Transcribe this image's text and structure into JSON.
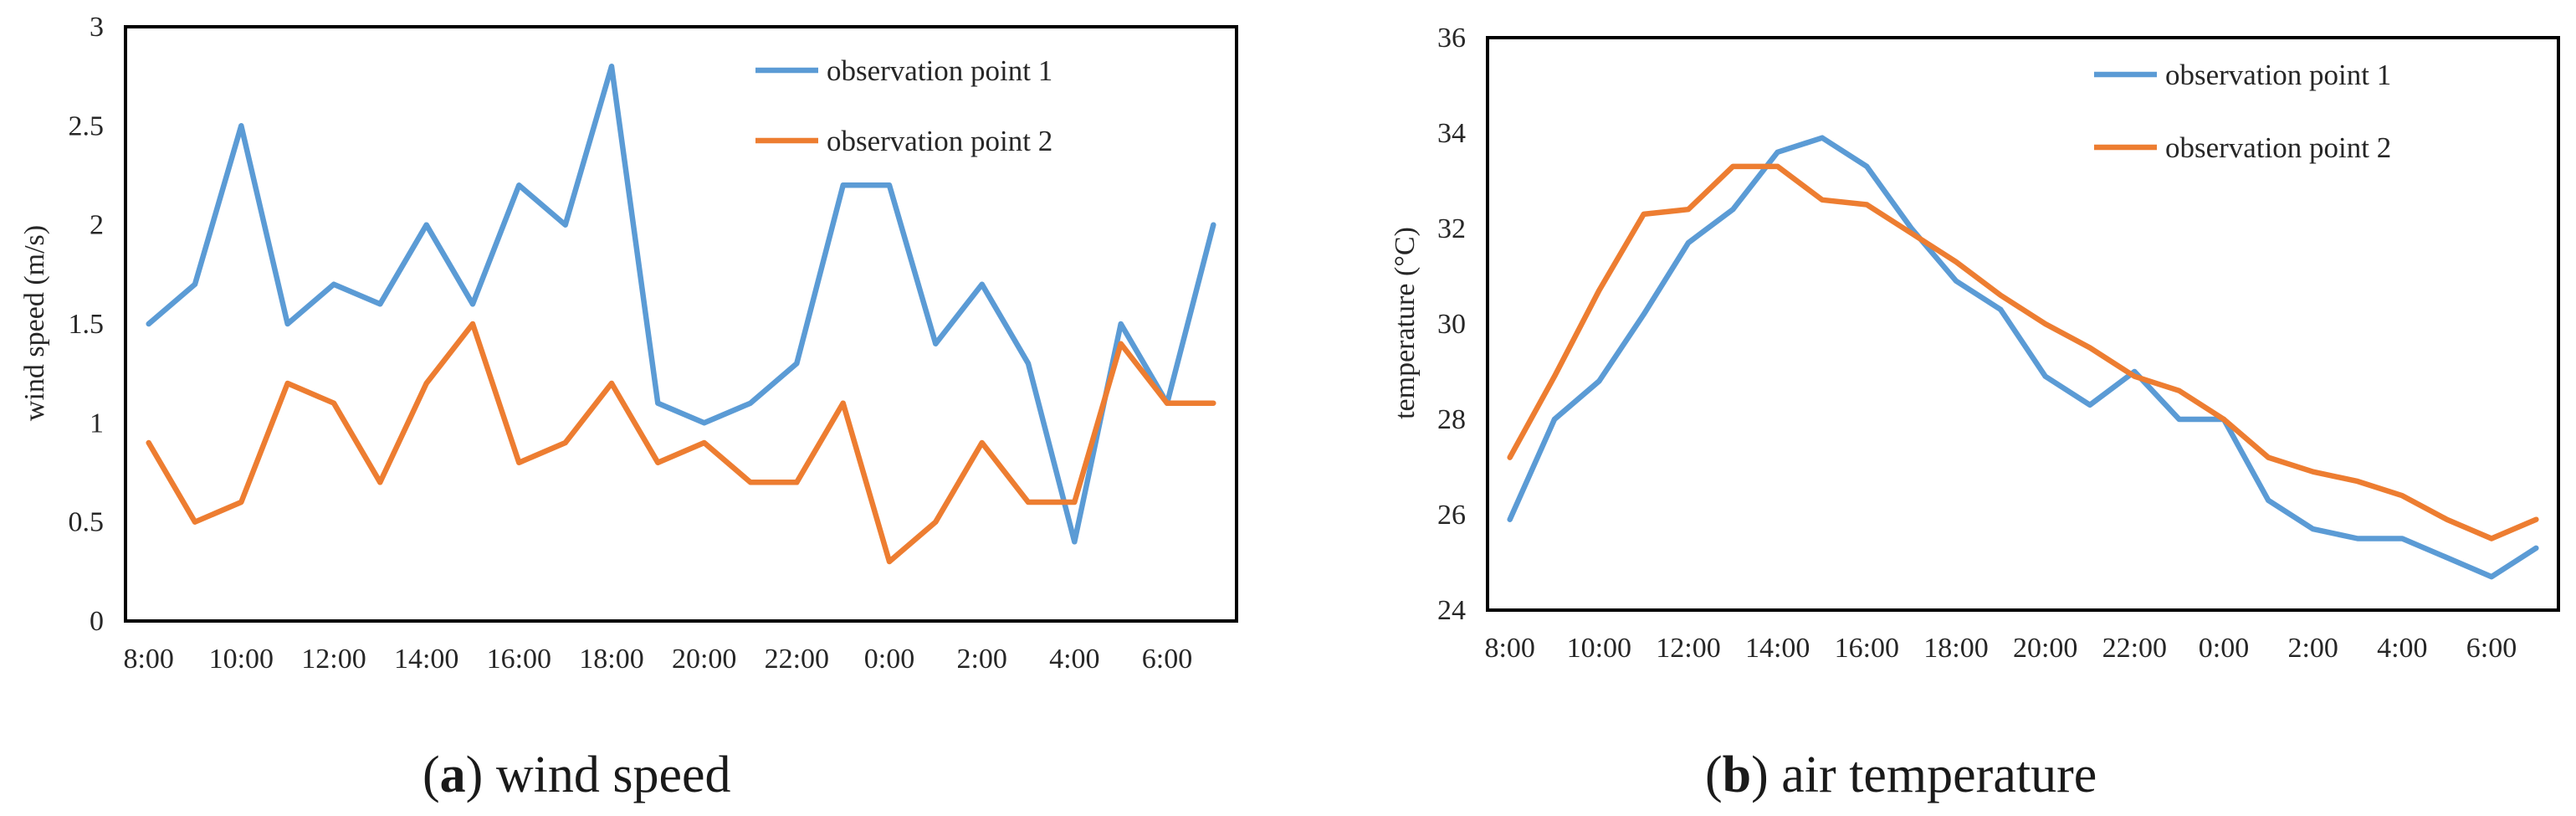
{
  "figure": {
    "captions": [
      {
        "letter": "a",
        "text": "wind speed"
      },
      {
        "letter": "b",
        "text": "air temperature"
      }
    ]
  },
  "chart_data": [
    {
      "type": "line",
      "title": "wind speed",
      "xlabel": "",
      "ylabel": "wind speed (m/s)",
      "ylim": [
        0,
        3
      ],
      "yticks": [
        "0",
        "0.5",
        "1",
        "1.5",
        "2",
        "2.5",
        "3"
      ],
      "xtick_labels": [
        "8:00",
        "10:00",
        "12:00",
        "14:00",
        "16:00",
        "18:00",
        "20:00",
        "22:00",
        "0:00",
        "2:00",
        "4:00",
        "6:00"
      ],
      "x": [
        "8:00",
        "9:00",
        "10:00",
        "11:00",
        "12:00",
        "13:00",
        "14:00",
        "15:00",
        "16:00",
        "17:00",
        "18:00",
        "19:00",
        "20:00",
        "21:00",
        "22:00",
        "23:00",
        "0:00",
        "1:00",
        "2:00",
        "3:00",
        "4:00",
        "5:00",
        "6:00",
        "7:00"
      ],
      "legend_position": "top-right",
      "series": [
        {
          "name": "observation point 1",
          "color": "#5b9bd5",
          "values": [
            1.5,
            1.7,
            2.5,
            1.5,
            1.7,
            1.6,
            2.0,
            1.6,
            2.2,
            2.0,
            2.8,
            1.1,
            1.0,
            1.1,
            1.3,
            2.2,
            2.2,
            1.4,
            1.7,
            1.3,
            0.4,
            1.5,
            1.1,
            2.0
          ]
        },
        {
          "name": "observation point 2",
          "color": "#ed7d31",
          "values": [
            0.9,
            0.5,
            0.6,
            1.2,
            1.1,
            0.7,
            1.2,
            1.5,
            0.8,
            0.9,
            1.2,
            0.8,
            0.9,
            0.7,
            0.7,
            1.1,
            0.3,
            0.5,
            0.9,
            0.6,
            0.6,
            1.4,
            1.1,
            1.1
          ]
        }
      ]
    },
    {
      "type": "line",
      "title": "air temperature",
      "xlabel": "",
      "ylabel": "temperature (°C)",
      "ylim": [
        24,
        36
      ],
      "yticks": [
        "24",
        "26",
        "28",
        "30",
        "32",
        "34",
        "36"
      ],
      "xtick_labels": [
        "8:00",
        "10:00",
        "12:00",
        "14:00",
        "16:00",
        "18:00",
        "20:00",
        "22:00",
        "0:00",
        "2:00",
        "4:00",
        "6:00"
      ],
      "x": [
        "8:00",
        "9:00",
        "10:00",
        "11:00",
        "12:00",
        "13:00",
        "14:00",
        "15:00",
        "16:00",
        "17:00",
        "18:00",
        "19:00",
        "20:00",
        "21:00",
        "22:00",
        "23:00",
        "0:00",
        "1:00",
        "2:00",
        "3:00",
        "4:00",
        "5:00",
        "6:00",
        "7:00"
      ],
      "legend_position": "top-right",
      "series": [
        {
          "name": "observation point 1",
          "color": "#5b9bd5",
          "values": [
            25.9,
            28.0,
            28.8,
            30.2,
            31.7,
            32.4,
            33.6,
            33.9,
            33.3,
            32.0,
            30.9,
            30.3,
            28.9,
            28.3,
            29.0,
            28.0,
            28.0,
            26.3,
            25.7,
            25.5,
            25.5,
            25.1,
            24.7,
            25.3
          ]
        },
        {
          "name": "observation point 2",
          "color": "#ed7d31",
          "values": [
            27.2,
            28.9,
            30.7,
            32.3,
            32.4,
            33.3,
            33.3,
            32.6,
            32.5,
            31.9,
            31.3,
            30.6,
            30.0,
            29.5,
            28.9,
            28.6,
            28.0,
            27.2,
            26.9,
            26.7,
            26.4,
            25.9,
            25.5,
            25.9
          ]
        }
      ]
    }
  ]
}
